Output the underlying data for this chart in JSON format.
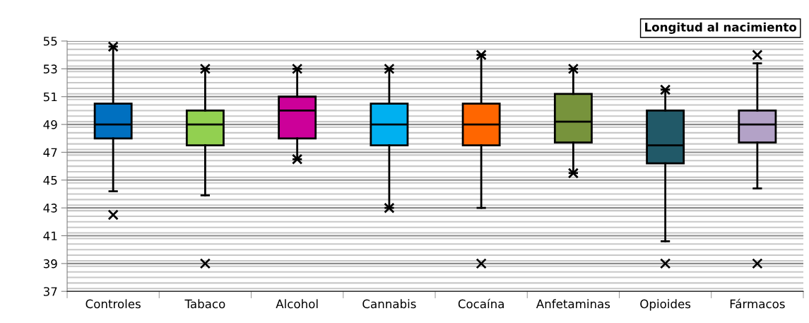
{
  "chart_data": {
    "type": "box",
    "title": "Longitud al nacimiento",
    "categories": [
      "Controles",
      "Tabaco",
      "Alcohol",
      "Cannabis",
      "Cocaína",
      "Anfetaminas",
      "Opioides",
      "Fármacos"
    ],
    "colors": [
      "#0070c0",
      "#92d050",
      "#cc0099",
      "#00b0f0",
      "#ff6600",
      "#77933c",
      "#215968",
      "#b3a2c7"
    ],
    "boxes": [
      {
        "low": 44.2,
        "q1": 48,
        "median": 49,
        "q3": 50.5,
        "high": 54.6,
        "outliers": [
          54.6,
          42.5
        ]
      },
      {
        "low": 43.9,
        "q1": 47.5,
        "median": 49,
        "q3": 50,
        "high": 53,
        "outliers": [
          53,
          39
        ]
      },
      {
        "low": 46.5,
        "q1": 48,
        "median": 50,
        "q3": 51,
        "high": 53,
        "outliers": [
          53,
          46.5
        ]
      },
      {
        "low": 43,
        "q1": 47.5,
        "median": 49,
        "q3": 50.5,
        "high": 53,
        "outliers": [
          53,
          43
        ]
      },
      {
        "low": 43,
        "q1": 47.5,
        "median": 49,
        "q3": 50.5,
        "high": 54,
        "outliers": [
          54,
          39
        ]
      },
      {
        "low": 45.5,
        "q1": 47.7,
        "median": 49.2,
        "q3": 51.2,
        "high": 53,
        "outliers": [
          53,
          45.5
        ]
      },
      {
        "low": 40.6,
        "q1": 46.2,
        "median": 47.5,
        "q3": 50,
        "high": 51.5,
        "outliers": [
          51.5,
          39
        ]
      },
      {
        "low": 44.4,
        "q1": 47.7,
        "median": 49,
        "q3": 50,
        "high": 53.4,
        "outliers": [
          54,
          39
        ]
      }
    ],
    "ylim": [
      37,
      55
    ],
    "yticks": [
      37,
      39,
      41,
      43,
      45,
      47,
      49,
      51,
      53,
      55
    ],
    "grid": "y",
    "marker": "cross"
  }
}
